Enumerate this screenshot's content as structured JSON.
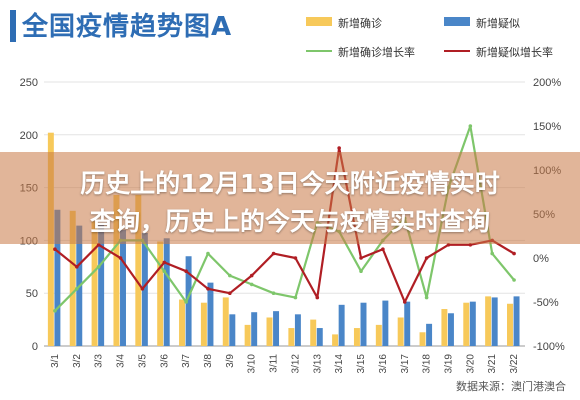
{
  "chart_data": {
    "type": "bar",
    "title": "全国疫情趋势图A",
    "categories": [
      "3/1",
      "3/2",
      "3/3",
      "3/4",
      "3/5",
      "3/6",
      "3/7",
      "3/8",
      "3/9",
      "3/10",
      "3/11",
      "3/12",
      "3/13",
      "3/14",
      "3/15",
      "3/16",
      "3/17",
      "3/18",
      "3/19",
      "3/20",
      "3/21",
      "3/22"
    ],
    "series": [
      {
        "name": "新增确诊",
        "kind": "bar",
        "axis": "left",
        "color": "#f7c95a",
        "values": [
          202,
          128,
          118,
          143,
          143,
          99,
          44,
          41,
          46,
          20,
          27,
          17,
          25,
          11,
          17,
          20,
          27,
          13,
          35,
          41,
          47,
          40
        ]
      },
      {
        "name": "新增疑似",
        "kind": "bar",
        "axis": "left",
        "color": "#4a86c8",
        "values": [
          129,
          114,
          115,
          110,
          107,
          102,
          85,
          60,
          30,
          32,
          33,
          30,
          17,
          39,
          41,
          43,
          42,
          21,
          31,
          42,
          46,
          47
        ]
      },
      {
        "name": "新增确诊增长率",
        "kind": "line",
        "axis": "right",
        "color": "#7ec66b",
        "values": [
          -60,
          -35,
          -10,
          20,
          20,
          -15,
          -50,
          5,
          -20,
          -30,
          -40,
          -45,
          40,
          30,
          -15,
          20,
          45,
          -45,
          80,
          150,
          5,
          -25
        ]
      },
      {
        "name": "新增疑似增长率",
        "kind": "line",
        "axis": "right",
        "color": "#b01e24",
        "values": [
          10,
          -10,
          15,
          0,
          -35,
          -5,
          -15,
          -35,
          -40,
          -20,
          5,
          0,
          -45,
          125,
          0,
          10,
          -50,
          0,
          15,
          15,
          20,
          5
        ]
      }
    ],
    "yaxis_left": {
      "ticks": [
        "0",
        "50",
        "100",
        "150",
        "200",
        "250"
      ],
      "ylim": [
        0,
        250
      ]
    },
    "yaxis_right": {
      "ticks": [
        "-100%",
        "-50%",
        "0%",
        "50%",
        "100%",
        "150%",
        "200%"
      ],
      "ylim": [
        -100,
        200
      ]
    },
    "grid": true,
    "legend_position": "top-right"
  },
  "overlay": {
    "line1": "历史上的12月13日今天附近疫情实时",
    "line2": "查询，历史上的今天与疫情实时查询"
  },
  "source": "数据来源：澳门港澳合"
}
